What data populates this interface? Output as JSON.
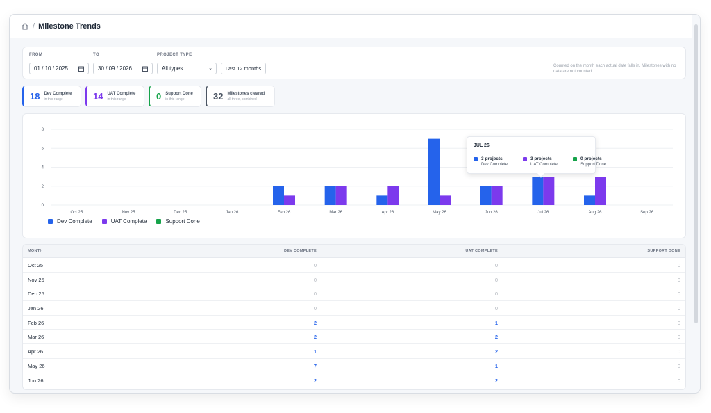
{
  "breadcrumb": {
    "title": "Milestone Trends",
    "separator": "/",
    "home_icon": "home-icon"
  },
  "filters": {
    "from_label": "FROM",
    "from_value": "01 / 10 / 2025",
    "to_label": "TO",
    "to_value": "30 / 09 / 2026",
    "type_label": "PROJECT TYPE",
    "type_value": "All types",
    "range_button": "Last 12 months",
    "note": "Counted on the month each actual date falls in. Milestones with no data are not counted."
  },
  "kpis": [
    {
      "value": "18",
      "label": "Dev Complete",
      "sub": "in this range",
      "color": "#2563eb"
    },
    {
      "value": "14",
      "label": "UAT Complete",
      "sub": "in this range",
      "color": "#7c3aed"
    },
    {
      "value": "0",
      "label": "Support Done",
      "sub": "in this range",
      "color": "#16a34a"
    },
    {
      "value": "32",
      "label": "Milestones cleared",
      "sub": "all three, combined",
      "color": "#4b5563"
    }
  ],
  "chart_data": {
    "type": "bar",
    "categories": [
      "Oct 25",
      "Nov 25",
      "Dec 25",
      "Jan 26",
      "Feb 26",
      "Mar 26",
      "Apr 26",
      "May 26",
      "Jun 26",
      "Jul 26",
      "Aug 26",
      "Sep 26"
    ],
    "series": [
      {
        "name": "Dev Complete",
        "color": "#2563eb",
        "values": [
          0,
          0,
          0,
          0,
          2,
          2,
          1,
          7,
          2,
          3,
          1,
          0
        ]
      },
      {
        "name": "UAT Complete",
        "color": "#7c3aed",
        "values": [
          0,
          0,
          0,
          0,
          1,
          2,
          2,
          1,
          2,
          3,
          3,
          0
        ]
      },
      {
        "name": "Support Done",
        "color": "#16a34a",
        "values": [
          0,
          0,
          0,
          0,
          0,
          0,
          0,
          0,
          0,
          0,
          0,
          0
        ]
      }
    ],
    "yticks": [
      "0",
      "2",
      "4",
      "6",
      "8"
    ],
    "ylim": [
      0,
      8
    ],
    "grid": true,
    "legend": "bottom-left"
  },
  "tooltip": {
    "title": "JUL 26",
    "items": [
      {
        "value": "3 projects",
        "label": "Dev Complete",
        "color": "#2563eb"
      },
      {
        "value": "3 projects",
        "label": "UAT Complete",
        "color": "#7c3aed"
      },
      {
        "value": "0 projects",
        "label": "Support Done",
        "color": "#16a34a"
      }
    ]
  },
  "table": {
    "headers": {
      "month": "MONTH",
      "dev": "DEV COMPLETE",
      "uat": "UAT COMPLETE",
      "support": "SUPPORT DONE"
    },
    "rows": [
      {
        "month": "Oct 25",
        "dev": "0",
        "uat": "0",
        "support": "0"
      },
      {
        "month": "Nov 25",
        "dev": "0",
        "uat": "0",
        "support": "0"
      },
      {
        "month": "Dec 25",
        "dev": "0",
        "uat": "0",
        "support": "0"
      },
      {
        "month": "Jan 26",
        "dev": "0",
        "uat": "0",
        "support": "0"
      },
      {
        "month": "Feb 26",
        "dev": "2",
        "uat": "1",
        "support": "0"
      },
      {
        "month": "Mar 26",
        "dev": "2",
        "uat": "2",
        "support": "0"
      },
      {
        "month": "Apr 26",
        "dev": "1",
        "uat": "2",
        "support": "0"
      },
      {
        "month": "May 26",
        "dev": "7",
        "uat": "1",
        "support": "0"
      },
      {
        "month": "Jun 26",
        "dev": "2",
        "uat": "2",
        "support": "0"
      }
    ]
  }
}
